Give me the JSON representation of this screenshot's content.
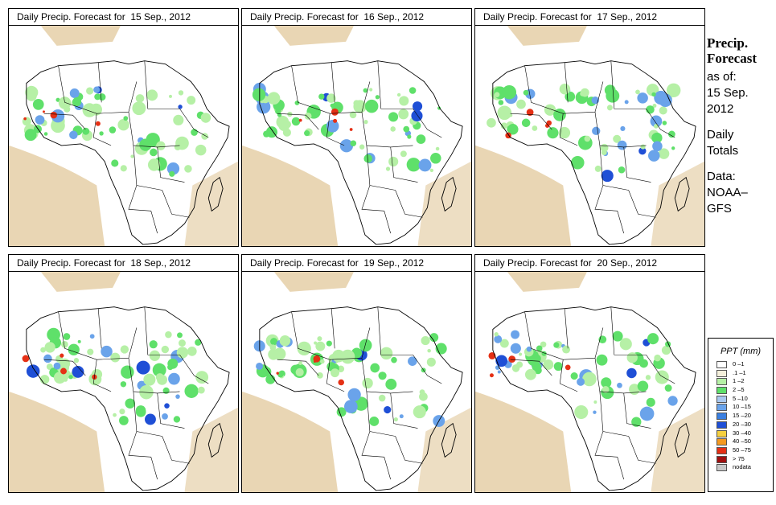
{
  "panels": [
    {
      "title": "Daily Precip. Forecast for  15 Sep., 2012"
    },
    {
      "title": "Daily Precip. Forecast for  16 Sep., 2012"
    },
    {
      "title": "Daily Precip. Forecast for  17 Sep., 2012"
    },
    {
      "title": "Daily Precip. Forecast for  18 Sep., 2012"
    },
    {
      "title": "Daily Precip. Forecast for  19 Sep., 2012"
    },
    {
      "title": "Daily Precip. Forecast for  20 Sep., 2012"
    }
  ],
  "side": {
    "heading_line1": "Precip.",
    "heading_line2": "Forecast",
    "asof_label": "as of:",
    "asof_date_line1": "15 Sep.",
    "asof_date_line2": "2012",
    "totals_line1": "Daily",
    "totals_line2": "Totals",
    "data_label": "Data:",
    "data_source_line1": "NOAA–",
    "data_source_line2": "GFS"
  },
  "legend": {
    "title": "PPT (mm)",
    "items": [
      {
        "label": "0 –1",
        "color": "#ffffff"
      },
      {
        "label": ".1 –1",
        "color": "#f5f0dc"
      },
      {
        "label": "1 –2",
        "color": "#b6f0a6"
      },
      {
        "label": "2 –5",
        "color": "#5fe06a"
      },
      {
        "label": "5 –10",
        "color": "#a9c8f0"
      },
      {
        "label": "10 –15",
        "color": "#6aa3ea"
      },
      {
        "label": "15 –20",
        "color": "#3a7fe0"
      },
      {
        "label": "20 –30",
        "color": "#1f4fd6"
      },
      {
        "label": "30 –40",
        "color": "#f5d040"
      },
      {
        "label": "40 –50",
        "color": "#f59a20"
      },
      {
        "label": "50 –75",
        "color": "#e53015"
      },
      {
        "label": "> 75",
        "color": "#a01010"
      },
      {
        "label": "nodata",
        "color": "#c8c8c8"
      }
    ]
  },
  "map_colors": {
    "dry": "#e9d6b4",
    "light": "#b6f0a6",
    "moderate": "#5fe06a",
    "medium": "#6aa3ea",
    "heavy": "#1f4fd6",
    "extreme": "#e53015"
  }
}
